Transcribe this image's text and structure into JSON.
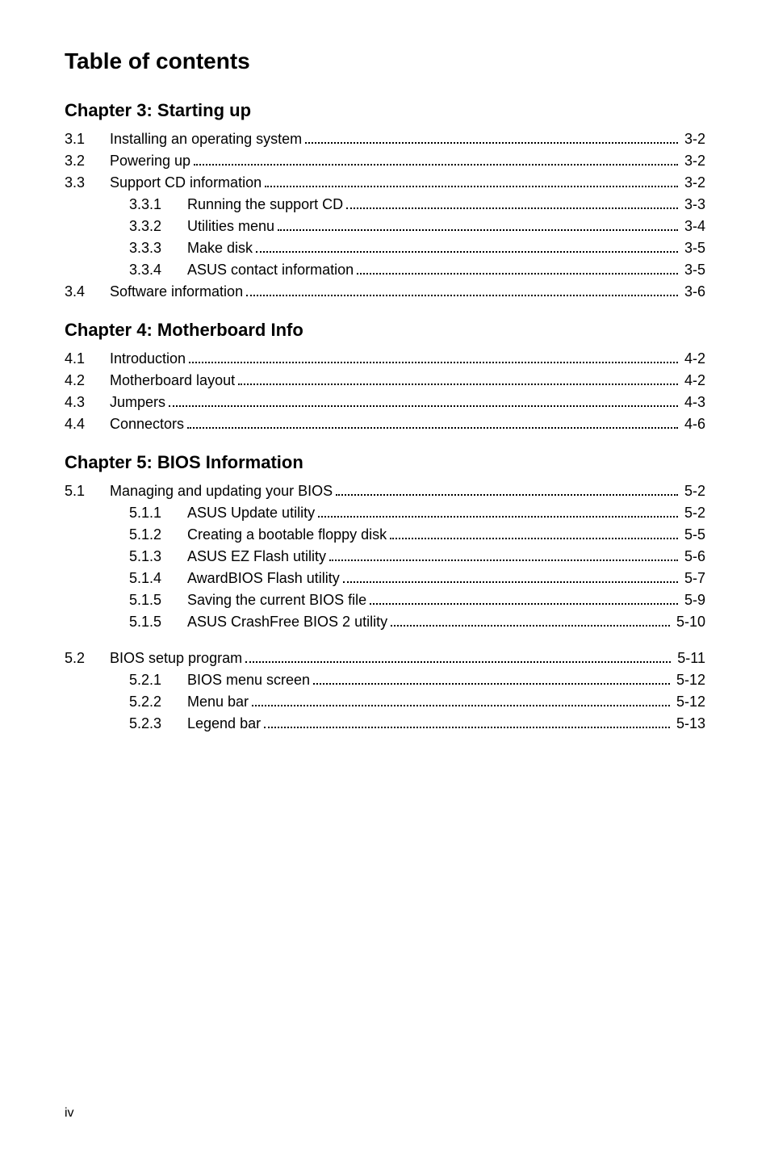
{
  "title": "Table of contents",
  "page_number": "iv",
  "chapters": [
    {
      "heading": "Chapter 3: Starting up",
      "entries": [
        {
          "level": 1,
          "num": "3.1",
          "label": "Installing an operating system",
          "page": "3-2"
        },
        {
          "level": 1,
          "num": "3.2",
          "label": "Powering up",
          "page": "3-2"
        },
        {
          "level": 1,
          "num": "3.3",
          "label": "Support CD information",
          "page": "3-2"
        },
        {
          "level": 2,
          "num": "3.3.1",
          "label": "Running the support CD",
          "page": "3-3"
        },
        {
          "level": 2,
          "num": "3.3.2",
          "label": "Utilities menu",
          "page": "3-4"
        },
        {
          "level": 2,
          "num": "3.3.3",
          "label": "Make disk",
          "page": "3-5"
        },
        {
          "level": 2,
          "num": "3.3.4",
          "label": "ASUS contact information",
          "page": "3-5"
        },
        {
          "level": 1,
          "num": "3.4",
          "label": "Software information",
          "page": "3-6"
        }
      ]
    },
    {
      "heading": "Chapter 4: Motherboard Info",
      "entries": [
        {
          "level": 1,
          "num": "4.1",
          "label": "Introduction",
          "page": "4-2"
        },
        {
          "level": 1,
          "num": "4.2",
          "label": "Motherboard layout",
          "page": "4-2"
        },
        {
          "level": 1,
          "num": "4.3",
          "label": "Jumpers",
          "page": "4-3"
        },
        {
          "level": 1,
          "num": "4.4",
          "label": "Connectors",
          "page": "4-6"
        }
      ]
    },
    {
      "heading": "Chapter 5: BIOS Information",
      "entries": [
        {
          "level": 1,
          "num": "5.1",
          "label": "Managing and updating your BIOS",
          "page": "5-2"
        },
        {
          "level": 2,
          "num": "5.1.1",
          "label": "ASUS Update utility",
          "page": "5-2"
        },
        {
          "level": 2,
          "num": "5.1.2",
          "label": "Creating a bootable floppy disk",
          "page": "5-5"
        },
        {
          "level": 2,
          "num": "5.1.3",
          "label": "ASUS EZ Flash utility",
          "page": "5-6"
        },
        {
          "level": 2,
          "num": "5.1.4",
          "label": "AwardBIOS Flash utility",
          "page": "5-7"
        },
        {
          "level": 2,
          "num": "5.1.5",
          "label": "Saving the current BIOS file",
          "page": "5-9"
        },
        {
          "level": 2,
          "num": "5.1.5",
          "label": "ASUS CrashFree BIOS 2 utility",
          "page": "5-10"
        },
        {
          "gap": true
        },
        {
          "level": 1,
          "num": "5.2",
          "label": "BIOS setup program",
          "page": "5-11"
        },
        {
          "level": 2,
          "num": "5.2.1",
          "label": "BIOS menu screen",
          "page": "5-12"
        },
        {
          "level": 2,
          "num": "5.2.2",
          "label": "Menu bar",
          "page": "5-12"
        },
        {
          "level": 2,
          "num": "5.2.3",
          "label": "Legend bar",
          "page": "5-13"
        }
      ]
    }
  ]
}
